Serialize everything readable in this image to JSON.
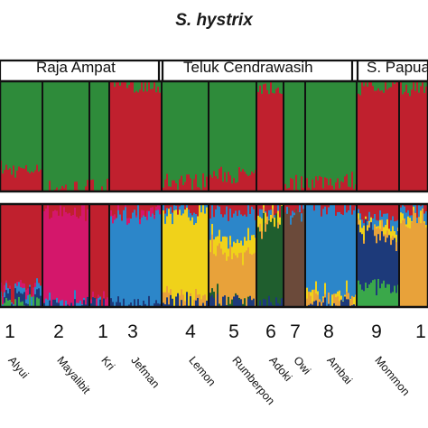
{
  "chart_data": {
    "type": "bar",
    "title": "S. hystrix",
    "regions": [
      "Raja Ampat",
      "Teluk Cendrawasih",
      "S. Papua"
    ],
    "populations": [
      {
        "number": "1",
        "site": "Alyui"
      },
      {
        "number": "2",
        "site": "Mayalibit"
      },
      {
        "number": "1",
        "site": "Kri"
      },
      {
        "number": "3",
        "site": "Jefman"
      },
      {
        "number": "4",
        "site": "Lemon"
      },
      {
        "number": "5",
        "site": "Rumberpon"
      },
      {
        "number": "6",
        "site": "Adoki"
      },
      {
        "number": "7",
        "site": "Owi"
      },
      {
        "number": "8",
        "site": "Ambai"
      },
      {
        "number": "9",
        "site": "Mommon"
      },
      {
        "number": "1",
        "site": ""
      }
    ],
    "panels": [
      {
        "id": "K2",
        "colors": [
          "#2e8b3a",
          "#c0202e"
        ],
        "population_ancestry": [
          [
            0.8,
            0.2
          ],
          [
            0.97,
            0.03
          ],
          [
            0.95,
            0.05
          ],
          [
            0.03,
            0.97
          ],
          [
            0.9,
            0.1
          ],
          [
            0.85,
            0.15
          ],
          [
            0.05,
            0.95
          ],
          [
            0.92,
            0.08
          ],
          [
            0.9,
            0.1
          ],
          [
            0.05,
            0.95
          ],
          [
            0.05,
            0.95
          ]
        ]
      },
      {
        "id": "K-high",
        "colors": [
          "#c0202e",
          "#d4176b",
          "#2c86c9",
          "#f0d21a",
          "#e8a23a",
          "#1f5e2e",
          "#6b4a3a",
          "#1d3a7a",
          "#3aa84a"
        ],
        "population_ancestry": [
          [
            0.85,
            0.02,
            0.03,
            0.0,
            0.0,
            0.0,
            0.0,
            0.05,
            0.05
          ],
          [
            0.1,
            0.88,
            0.01,
            0.0,
            0.0,
            0.0,
            0.0,
            0.01,
            0.0
          ],
          [
            0.95,
            0.02,
            0.01,
            0.0,
            0.0,
            0.0,
            0.0,
            0.02,
            0.0
          ],
          [
            0.08,
            0.02,
            0.88,
            0.0,
            0.0,
            0.0,
            0.0,
            0.02,
            0.0
          ],
          [
            0.03,
            0.0,
            0.05,
            0.82,
            0.05,
            0.0,
            0.0,
            0.05,
            0.0
          ],
          [
            0.08,
            0.0,
            0.25,
            0.15,
            0.45,
            0.02,
            0.0,
            0.05,
            0.0
          ],
          [
            0.05,
            0.0,
            0.05,
            0.05,
            0.02,
            0.8,
            0.0,
            0.03,
            0.0
          ],
          [
            0.04,
            0.0,
            0.01,
            0.0,
            0.0,
            0.0,
            0.95,
            0.0,
            0.0
          ],
          [
            0.03,
            0.0,
            0.85,
            0.05,
            0.05,
            0.0,
            0.0,
            0.02,
            0.0
          ],
          [
            0.12,
            0.0,
            0.08,
            0.05,
            0.05,
            0.0,
            0.0,
            0.5,
            0.2
          ],
          [
            0.05,
            0.0,
            0.05,
            0.05,
            0.85,
            0.0,
            0.0,
            0.0,
            0.0
          ]
        ]
      }
    ]
  }
}
